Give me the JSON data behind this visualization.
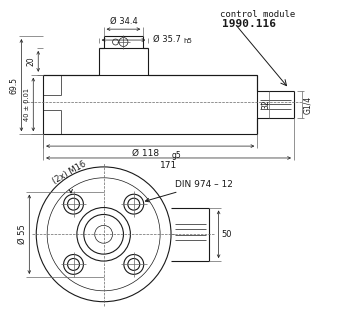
{
  "bg_color": "#ffffff",
  "line_color": "#1a1a1a",
  "lw": 0.8,
  "tlw": 0.5,
  "annotations": {
    "dia_34_4": "Ø 34.4",
    "dia_35_7": "Ø 35.7",
    "h5": "h5",
    "dia_118": "Ø 118",
    "g5": "g5",
    "dim_171": "171",
    "dim_69_5": "69.5",
    "dim_40": "40 ± 0.01",
    "dim_20": "20",
    "dim_32": "32",
    "dim_G14": "G1/4",
    "control_module": "control module",
    "part_num": "1990.116",
    "din": "DIN 974 – 12",
    "m16": "(2x) M16",
    "dia_55": "Ø 55",
    "dim_50": "50"
  }
}
